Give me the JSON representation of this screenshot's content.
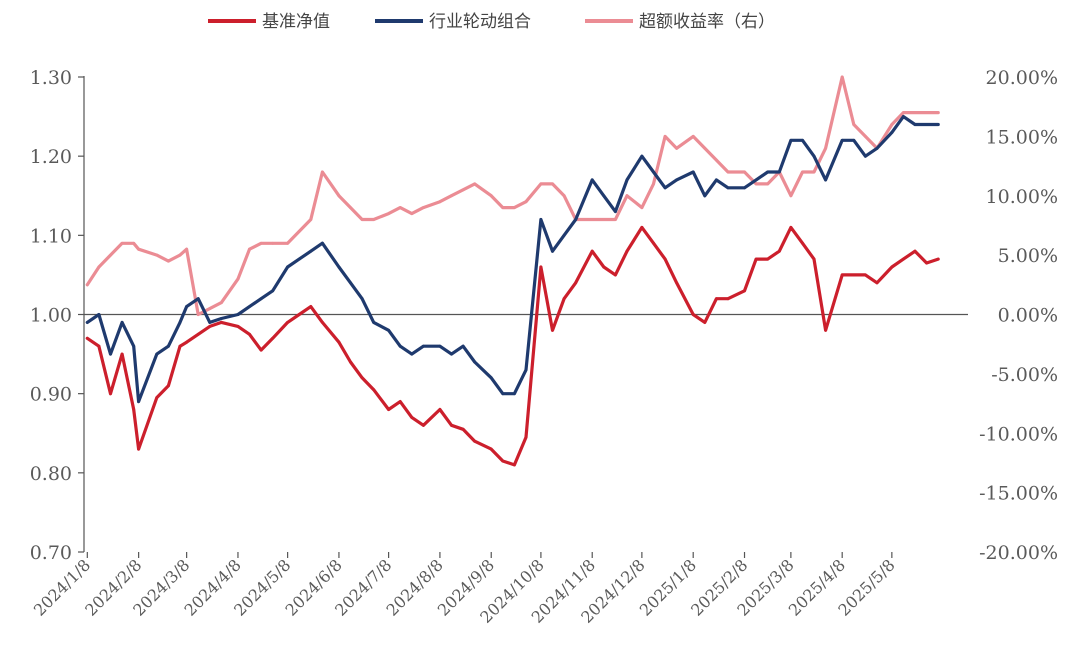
{
  "chart_data": {
    "type": "line",
    "title": "",
    "xlabel": "",
    "ylabel": "",
    "ylim": [
      0.7,
      1.3
    ],
    "y2lim": [
      -0.2,
      0.2
    ],
    "legend_position": "top",
    "grid": false,
    "colors": {
      "benchmark": "#cc1f2c",
      "portfolio": "#1f3a6e",
      "excess": "#eb8c94",
      "axis": "#555555"
    },
    "yticks_left": [
      "1.30",
      "1.20",
      "1.10",
      "1.00",
      "0.90",
      "0.80",
      "0.70"
    ],
    "yticks_right": [
      "20.00%",
      "15.00%",
      "10.00%",
      "5.00%",
      "0.00%",
      "-5.00%",
      "-10.00%",
      "-15.00%",
      "-20.00%"
    ],
    "xticks": [
      "2024/1/8",
      "2024/2/8",
      "2024/3/8",
      "2024/4/8",
      "2024/5/8",
      "2024/6/8",
      "2024/7/8",
      "2024/8/8",
      "2024/9/8",
      "2024/10/8",
      "2024/11/8",
      "2024/12/8",
      "2025/1/8",
      "2025/2/8",
      "2025/3/8",
      "2025/4/8",
      "2025/5/8"
    ],
    "x": [
      "2024/1/8",
      "2024/1/15",
      "2024/1/22",
      "2024/1/29",
      "2024/2/5",
      "2024/2/8",
      "2024/2/19",
      "2024/2/26",
      "2024/3/4",
      "2024/3/8",
      "2024/3/15",
      "2024/3/22",
      "2024/3/29",
      "2024/4/8",
      "2024/4/15",
      "2024/4/22",
      "2024/4/29",
      "2024/5/8",
      "2024/5/15",
      "2024/5/22",
      "2024/5/29",
      "2024/6/8",
      "2024/6/15",
      "2024/6/22",
      "2024/6/29",
      "2024/7/8",
      "2024/7/15",
      "2024/7/22",
      "2024/7/29",
      "2024/8/8",
      "2024/8/15",
      "2024/8/22",
      "2024/8/29",
      "2024/9/8",
      "2024/9/15",
      "2024/9/22",
      "2024/9/29",
      "2024/10/8",
      "2024/10/15",
      "2024/10/22",
      "2024/10/29",
      "2024/11/8",
      "2024/11/15",
      "2024/11/22",
      "2024/11/29",
      "2024/12/8",
      "2024/12/15",
      "2024/12/22",
      "2024/12/29",
      "2025/1/8",
      "2025/1/15",
      "2025/1/22",
      "2025/1/29",
      "2025/2/8",
      "2025/2/15",
      "2025/2/22",
      "2025/3/1",
      "2025/3/8",
      "2025/3/15",
      "2025/3/22",
      "2025/3/29",
      "2025/4/8",
      "2025/4/15",
      "2025/4/22",
      "2025/4/29",
      "2025/5/8",
      "2025/5/15",
      "2025/5/22",
      "2025/5/29",
      "2025/6/5"
    ],
    "series": [
      {
        "name": "基准净值",
        "axis": "left",
        "color": "#cc1f2c",
        "values": [
          0.97,
          0.96,
          0.9,
          0.95,
          0.88,
          0.83,
          0.895,
          0.91,
          0.96,
          0.965,
          0.975,
          0.985,
          0.99,
          0.985,
          0.975,
          0.955,
          0.97,
          0.99,
          1.0,
          1.01,
          0.99,
          0.965,
          0.94,
          0.92,
          0.905,
          0.88,
          0.89,
          0.87,
          0.86,
          0.88,
          0.86,
          0.855,
          0.84,
          0.83,
          0.815,
          0.81,
          0.845,
          1.06,
          0.98,
          1.02,
          1.04,
          1.08,
          1.06,
          1.05,
          1.08,
          1.11,
          1.09,
          1.07,
          1.04,
          1.0,
          0.99,
          1.02,
          1.02,
          1.03,
          1.07,
          1.07,
          1.08,
          1.11,
          1.09,
          1.07,
          0.98,
          1.05,
          1.05,
          1.05,
          1.04,
          1.06,
          1.07,
          1.08,
          1.065,
          1.07
        ]
      },
      {
        "name": "行业轮动组合",
        "axis": "left",
        "color": "#1f3a6e",
        "values": [
          0.99,
          1.0,
          0.95,
          0.99,
          0.96,
          0.89,
          0.95,
          0.96,
          0.99,
          1.01,
          1.02,
          0.99,
          0.995,
          1.0,
          1.01,
          1.02,
          1.03,
          1.06,
          1.07,
          1.08,
          1.09,
          1.06,
          1.04,
          1.02,
          0.99,
          0.98,
          0.96,
          0.95,
          0.96,
          0.96,
          0.95,
          0.96,
          0.94,
          0.92,
          0.9,
          0.9,
          0.93,
          1.12,
          1.08,
          1.1,
          1.12,
          1.17,
          1.15,
          1.13,
          1.17,
          1.2,
          1.18,
          1.16,
          1.17,
          1.18,
          1.15,
          1.17,
          1.16,
          1.16,
          1.17,
          1.18,
          1.18,
          1.22,
          1.22,
          1.2,
          1.17,
          1.22,
          1.22,
          1.2,
          1.21,
          1.23,
          1.25,
          1.24,
          1.24,
          1.24
        ]
      },
      {
        "name": "超额收益率（右）",
        "axis": "right",
        "color": "#eb8c94",
        "values": [
          0.025,
          0.04,
          0.05,
          0.06,
          0.06,
          0.055,
          0.05,
          0.045,
          0.05,
          0.055,
          0.0,
          0.005,
          0.01,
          0.03,
          0.055,
          0.06,
          0.06,
          0.06,
          0.07,
          0.08,
          0.12,
          0.1,
          0.09,
          0.08,
          0.08,
          0.085,
          0.09,
          0.085,
          0.09,
          0.095,
          0.1,
          0.105,
          0.11,
          0.1,
          0.09,
          0.09,
          0.095,
          0.11,
          0.11,
          0.1,
          0.08,
          0.08,
          0.08,
          0.08,
          0.1,
          0.09,
          0.11,
          0.15,
          0.14,
          0.15,
          0.14,
          0.13,
          0.12,
          0.12,
          0.11,
          0.11,
          0.12,
          0.1,
          0.12,
          0.12,
          0.14,
          0.2,
          0.16,
          0.15,
          0.14,
          0.16,
          0.17,
          0.17,
          0.17,
          0.17
        ]
      }
    ]
  }
}
